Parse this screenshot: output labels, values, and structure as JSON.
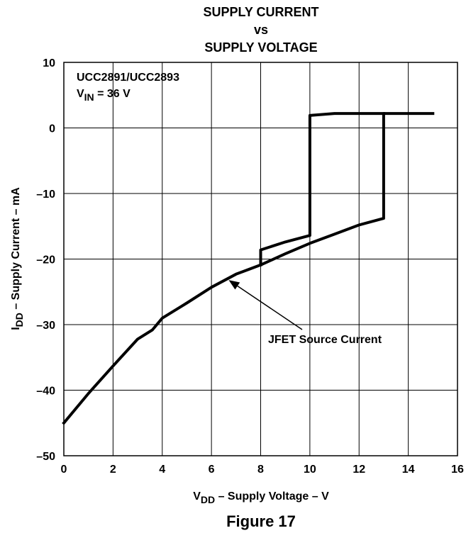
{
  "chart_data": {
    "type": "line",
    "title": [
      "SUPPLY CURRENT",
      "vs",
      "SUPPLY VOLTAGE"
    ],
    "xlabel": {
      "main": "V",
      "sub": "DD",
      "rest": " – Supply Voltage – V"
    },
    "ylabel": {
      "main": "I",
      "sub": "DD",
      "rest": " – Supply Current – mA"
    },
    "xlim": [
      0,
      16
    ],
    "ylim": [
      -50,
      10
    ],
    "xticks": [
      0,
      2,
      4,
      6,
      8,
      10,
      12,
      14,
      16
    ],
    "yticks": [
      -50,
      -40,
      -30,
      -20,
      -10,
      0,
      10
    ],
    "ytick_labels": [
      "–50",
      "–40",
      "–30",
      "–20",
      "–10",
      "0",
      "10"
    ],
    "grid": true,
    "annotations": {
      "device": "UCC2891/UCC2893",
      "vin": {
        "main": "V",
        "sub": "IN",
        "rest": " = 36 V"
      },
      "pointer_label": "JFET Source Current",
      "pointer_target": [
        6.7,
        -23.2
      ]
    },
    "series": [
      {
        "values": [
          [
            0,
            -45
          ],
          [
            1,
            -40.5
          ],
          [
            2,
            -36.3
          ],
          [
            3,
            -32.2
          ],
          [
            3.6,
            -30.8
          ],
          [
            4,
            -29
          ],
          [
            5,
            -26.7
          ],
          [
            6,
            -24.3
          ],
          [
            7,
            -22.3
          ],
          [
            8,
            -20.9
          ],
          [
            9,
            -19.2
          ],
          [
            10,
            -17.6
          ],
          [
            11,
            -16.2
          ],
          [
            12,
            -14.8
          ],
          [
            13,
            -13.8
          ],
          [
            13,
            2.2
          ],
          [
            15,
            2.2
          ]
        ]
      },
      {
        "values": [
          [
            8,
            -20.9
          ],
          [
            8,
            -18.6
          ],
          [
            9,
            -17.4
          ],
          [
            10,
            -16.4
          ],
          [
            10,
            1.9
          ],
          [
            11,
            2.2
          ],
          [
            13,
            2.2
          ]
        ]
      }
    ]
  },
  "figure_caption": "Figure 17",
  "colors": {
    "line": "#000000",
    "grid": "#000000",
    "background": "#ffffff"
  }
}
